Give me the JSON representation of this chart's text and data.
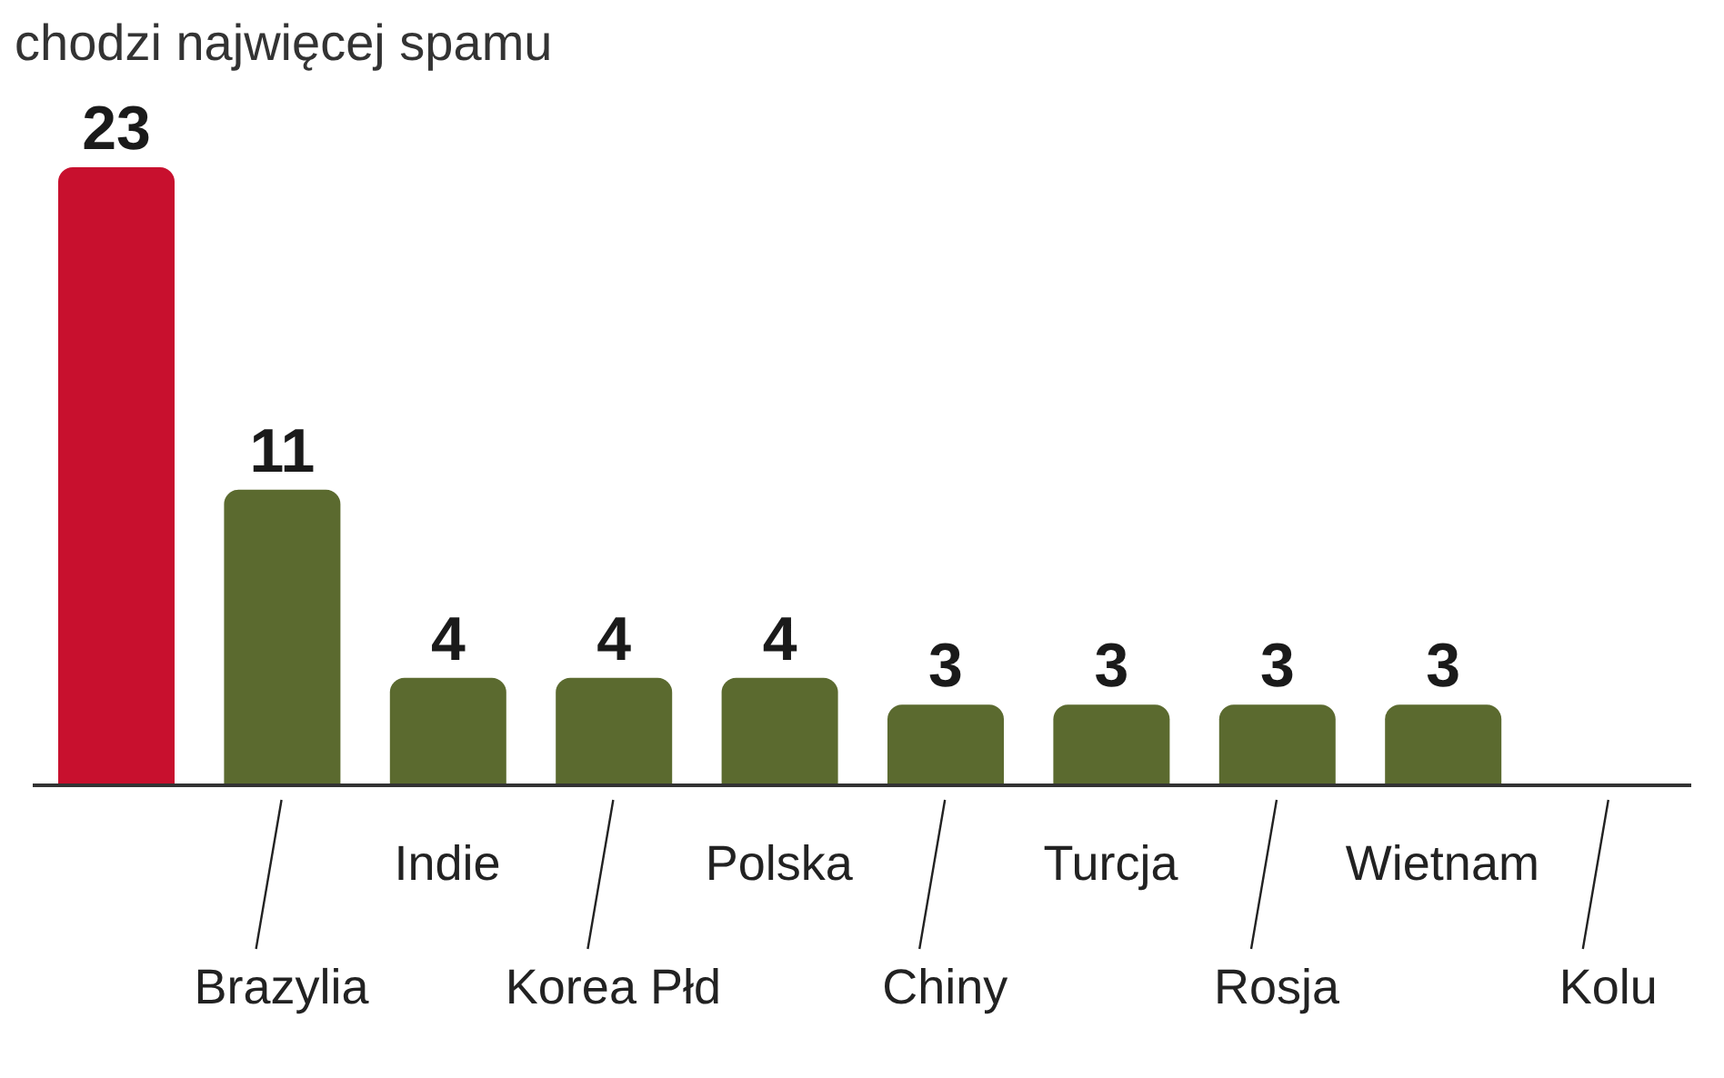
{
  "chart_data": {
    "type": "bar",
    "title": "chodzi najwięcej spamu",
    "categories": [
      null,
      "Brazylia",
      "Indie",
      "Korea Płd",
      "Polska",
      "Chiny",
      "Turcja",
      "Rosja",
      "Wietnam",
      "Kolu"
    ],
    "values": [
      23,
      11,
      4,
      4,
      4,
      3,
      3,
      3,
      3,
      null
    ],
    "data_labels": true,
    "colors": [
      "#c8102e",
      "#5b6a2f",
      "#5b6a2f",
      "#5b6a2f",
      "#5b6a2f",
      "#5b6a2f",
      "#5b6a2f",
      "#5b6a2f",
      "#5b6a2f",
      "#5b6a2f"
    ],
    "tick_labels": "x"
  }
}
